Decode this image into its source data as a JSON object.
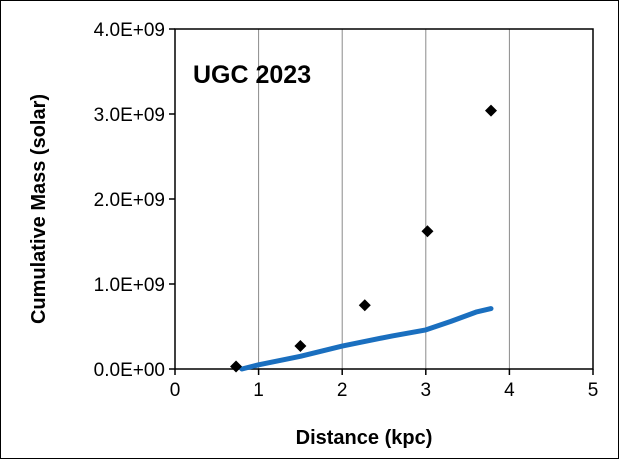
{
  "chart_data": {
    "type": "scatter",
    "annotation": "UGC 2023",
    "xlabel": "Distance  (kpc)",
    "ylabel": "Cumulative Mass (solar)",
    "xlim": [
      0,
      5
    ],
    "ylim": [
      0,
      4000000000
    ],
    "x_ticks": [
      0,
      1,
      2,
      3,
      4,
      5
    ],
    "x_tick_labels": [
      "0",
      "1",
      "2",
      "3",
      "4",
      "5"
    ],
    "y_ticks": [
      0,
      1000000000,
      2000000000,
      3000000000,
      4000000000
    ],
    "y_tick_labels": [
      "0.0E+00",
      "1.0E+09",
      "2.0E+09",
      "3.0E+09",
      "4.0E+09"
    ],
    "grid": "vertical",
    "series": [
      {
        "type": "scatter",
        "marker": "diamond",
        "color": "#000000",
        "x": [
          0.73,
          1.5,
          2.27,
          3.02,
          3.78
        ],
        "y": [
          30000000,
          270000000,
          750000000,
          1620000000,
          3040000000
        ]
      },
      {
        "type": "line",
        "color": "#1a6fbf",
        "x": [
          0.8,
          1.0,
          1.5,
          2.0,
          2.3,
          2.6,
          3.0,
          3.3,
          3.6,
          3.78
        ],
        "y": [
          0,
          50000000,
          150000000,
          270000000,
          330000000,
          390000000,
          460000000,
          560000000,
          670000000,
          710000000
        ]
      }
    ]
  }
}
